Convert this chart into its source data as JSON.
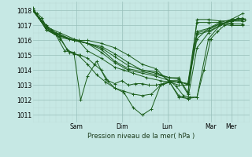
{
  "background_color": "#c6e8e4",
  "grid_color_major": "#98bfba",
  "grid_color_minor": "#b8d8d4",
  "line_color": "#1a5c1a",
  "marker_color": "#1a5c1a",
  "xlabel": "Pression niveau de la mer( hPa )",
  "xlim": [
    0.0,
    4.75
  ],
  "ylim": [
    1010.5,
    1018.6
  ],
  "yticks": [
    1011,
    1012,
    1013,
    1014,
    1015,
    1016,
    1017,
    1018
  ],
  "xtick_positions": [
    0.95,
    1.95,
    2.95,
    3.9,
    4.35
  ],
  "xtick_labels": [
    "Sam",
    "Dim",
    "Lun",
    "Mar",
    "Mer"
  ],
  "series": [
    [
      0.0,
      1018.0,
      0.1,
      1017.8,
      0.2,
      1017.5,
      0.3,
      1016.9,
      0.45,
      1016.5,
      0.6,
      1016.2,
      0.75,
      1015.4,
      0.9,
      1015.1,
      1.05,
      1015.0,
      1.2,
      1014.8,
      1.35,
      1014.4,
      1.5,
      1014.0,
      1.65,
      1013.3,
      1.8,
      1013.1,
      1.95,
      1013.3,
      2.1,
      1013.0,
      2.25,
      1013.1,
      2.4,
      1013.1,
      2.55,
      1013.0,
      2.7,
      1013.0,
      2.85,
      1013.1,
      3.0,
      1013.3,
      3.15,
      1012.9,
      3.3,
      1012.3,
      3.45,
      1012.2,
      3.6,
      1012.2,
      3.75,
      1014.0,
      3.9,
      1016.1,
      4.05,
      1016.6,
      4.2,
      1017.0,
      4.35,
      1017.2,
      4.5,
      1017.5,
      4.65,
      1017.4
    ],
    [
      0.0,
      1018.0,
      0.15,
      1017.5,
      0.3,
      1016.7,
      0.5,
      1016.4,
      0.7,
      1015.3,
      0.9,
      1015.2,
      1.05,
      1012.0,
      1.2,
      1013.6,
      1.4,
      1014.6,
      1.6,
      1013.4,
      1.8,
      1012.8,
      2.0,
      1012.5,
      2.2,
      1011.5,
      2.4,
      1011.0,
      2.6,
      1011.4,
      2.8,
      1013.0,
      3.0,
      1013.2,
      3.2,
      1012.3,
      3.4,
      1012.1,
      3.6,
      1012.2,
      3.85,
      1016.1,
      4.1,
      1017.0,
      4.35,
      1017.3,
      4.6,
      1017.5
    ],
    [
      0.0,
      1018.0,
      0.2,
      1017.3,
      0.4,
      1016.7,
      0.6,
      1016.1,
      0.8,
      1015.2,
      1.0,
      1015.0,
      1.2,
      1014.4,
      1.4,
      1013.7,
      1.6,
      1013.2,
      1.8,
      1012.8,
      2.0,
      1012.6,
      2.2,
      1012.4,
      2.4,
      1012.3,
      2.6,
      1012.4,
      2.8,
      1013.0,
      3.0,
      1013.2,
      3.2,
      1012.2,
      3.4,
      1012.1,
      3.6,
      1015.5,
      3.85,
      1016.5,
      4.1,
      1017.0,
      4.35,
      1017.4,
      4.6,
      1017.8
    ],
    [
      0.0,
      1018.0,
      0.3,
      1017.0,
      0.5,
      1016.5,
      0.8,
      1016.1,
      1.0,
      1016.0,
      1.2,
      1015.3,
      1.5,
      1014.8,
      1.8,
      1014.2,
      2.0,
      1014.0,
      2.2,
      1013.8,
      2.5,
      1013.5,
      2.8,
      1013.3,
      3.0,
      1013.2,
      3.2,
      1013.0,
      3.4,
      1013.0,
      3.6,
      1016.1,
      3.85,
      1016.8,
      4.1,
      1017.1,
      4.35,
      1017.0,
      4.6,
      1017.0
    ],
    [
      0.0,
      1018.0,
      0.3,
      1016.9,
      0.6,
      1016.5,
      0.9,
      1016.1,
      1.2,
      1015.8,
      1.5,
      1015.2,
      1.8,
      1014.5,
      2.1,
      1014.0,
      2.4,
      1013.8,
      2.7,
      1013.6,
      3.0,
      1013.3,
      3.2,
      1013.2,
      3.4,
      1013.1,
      3.6,
      1017.2,
      3.85,
      1017.2,
      4.1,
      1017.2,
      4.35,
      1017.1,
      4.6,
      1017.1
    ],
    [
      0.0,
      1018.0,
      0.3,
      1016.8,
      0.6,
      1016.4,
      0.9,
      1016.0,
      1.2,
      1015.8,
      1.5,
      1015.4,
      1.8,
      1014.6,
      2.1,
      1014.1,
      2.4,
      1013.9,
      2.7,
      1013.7,
      3.0,
      1013.5,
      3.2,
      1013.4,
      3.4,
      1012.4,
      3.6,
      1017.4,
      3.85,
      1017.4,
      4.1,
      1017.3,
      4.35,
      1017.3,
      4.6,
      1017.3
    ],
    [
      0.0,
      1018.0,
      0.3,
      1016.8,
      0.6,
      1016.3,
      0.9,
      1016.0,
      1.2,
      1015.8,
      1.5,
      1015.5,
      1.8,
      1014.9,
      2.1,
      1014.3,
      2.4,
      1014.0,
      2.7,
      1013.8,
      3.0,
      1013.5,
      3.2,
      1013.5,
      3.4,
      1012.5,
      3.6,
      1016.6,
      3.85,
      1016.8,
      4.1,
      1017.2,
      4.35,
      1017.4,
      4.6,
      1017.4
    ],
    [
      0.0,
      1018.1,
      0.3,
      1016.7,
      0.6,
      1016.3,
      0.9,
      1016.0,
      1.2,
      1015.8,
      1.5,
      1015.6,
      1.8,
      1015.1,
      2.1,
      1014.5,
      2.4,
      1014.0,
      2.7,
      1013.9,
      3.0,
      1013.3,
      3.2,
      1013.3,
      3.4,
      1013.0,
      3.6,
      1016.5,
      3.85,
      1016.7,
      4.1,
      1017.1,
      4.35,
      1017.3,
      4.6,
      1017.3
    ],
    [
      0.0,
      1018.2,
      0.3,
      1016.7,
      0.6,
      1016.2,
      0.9,
      1016.0,
      1.2,
      1016.0,
      1.5,
      1015.8,
      1.8,
      1015.5,
      2.1,
      1015.0,
      2.4,
      1014.4,
      2.7,
      1014.1,
      3.0,
      1013.2,
      3.2,
      1013.2,
      3.4,
      1013.1,
      3.6,
      1016.4,
      3.85,
      1016.6,
      4.1,
      1017.0,
      4.35,
      1017.4,
      4.6,
      1017.4
    ]
  ]
}
